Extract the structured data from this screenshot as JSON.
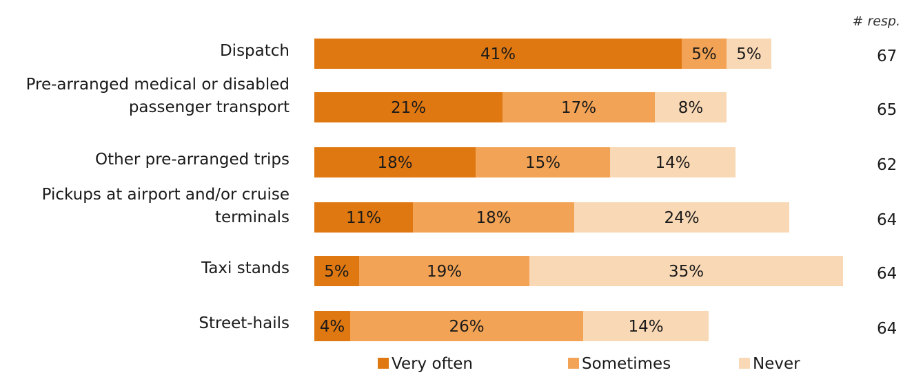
{
  "chart_data": {
    "type": "bar",
    "orientation": "horizontal",
    "stacked": true,
    "categories": [
      [
        "Dispatch"
      ],
      [
        "Pre-arranged medical or disabled",
        "passenger transport"
      ],
      [
        "Other pre-arranged trips"
      ],
      [
        "Pickups at airport and/or cruise",
        "terminals"
      ],
      [
        "Taxi stands"
      ],
      [
        "Street-hails"
      ]
    ],
    "series": [
      {
        "name": "Very often",
        "color": "#E07811",
        "values": [
          41,
          21,
          18,
          11,
          5,
          4
        ]
      },
      {
        "name": "Sometimes",
        "color": "#F2A355",
        "values": [
          5,
          17,
          15,
          18,
          19,
          26
        ]
      },
      {
        "name": "Never",
        "color": "#F9D8B5",
        "values": [
          5,
          8,
          14,
          24,
          35,
          14
        ]
      }
    ],
    "value_suffix": "%",
    "responses_header": "# resp.",
    "responses": [
      67,
      65,
      62,
      64,
      64,
      64
    ],
    "legend_position": "bottom",
    "grid": false
  }
}
